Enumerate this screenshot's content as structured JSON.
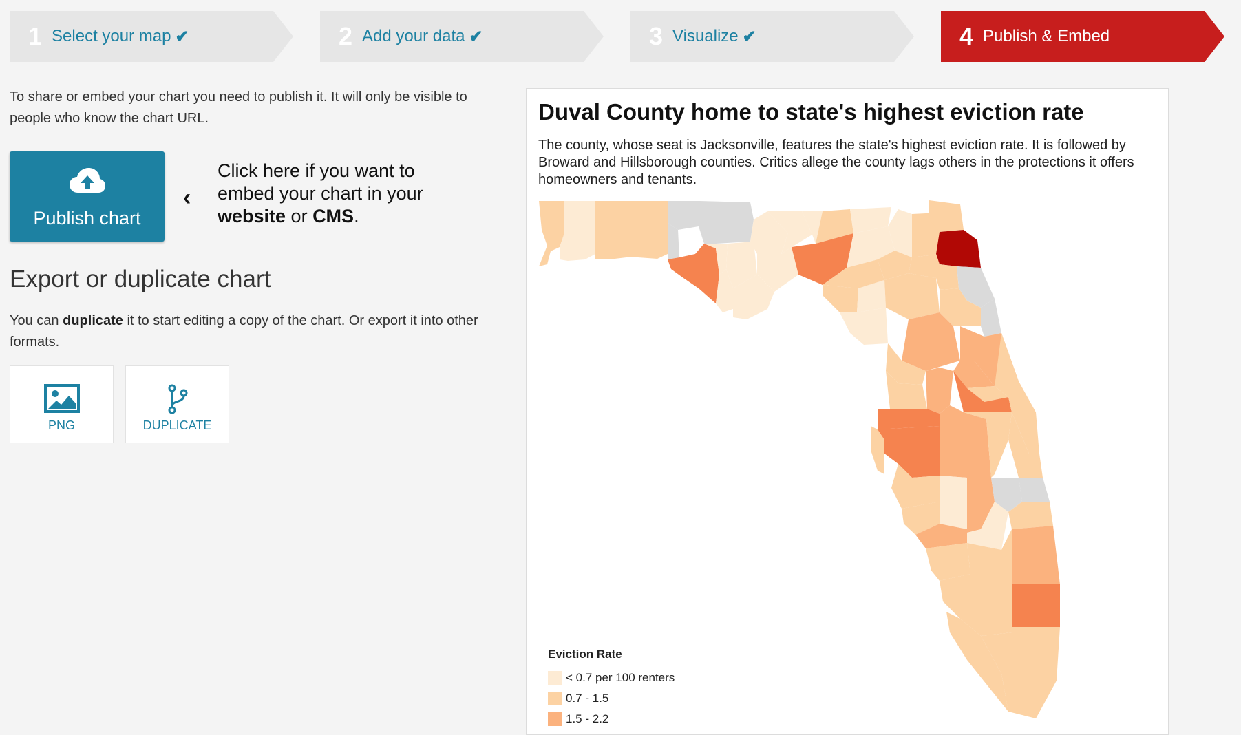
{
  "steps": [
    {
      "num": "1",
      "label": "Select your map",
      "done": true
    },
    {
      "num": "2",
      "label": "Add your data",
      "done": true
    },
    {
      "num": "3",
      "label": "Visualize",
      "done": true
    },
    {
      "num": "4",
      "label": "Publish & Embed",
      "done": false
    }
  ],
  "intro_text": "To share or embed your chart you need to publish it. It will only be visible to people who know the chart URL.",
  "publish_button": {
    "label": "Publish chart",
    "icon": "cloud-upload-icon"
  },
  "hint": {
    "part1": "Click here if you want to embed your chart in your ",
    "website": "website",
    "or": " or ",
    "cms": "CMS",
    "end": "."
  },
  "export": {
    "heading": "Export or duplicate chart",
    "desc_before": "You can ",
    "desc_bold": "duplicate",
    "desc_after": " it to start editing a copy of the chart. Or export it into other formats.",
    "options": [
      {
        "label": "PNG",
        "icon": "image-icon"
      },
      {
        "label": "DUPLICATE",
        "icon": "fork-icon"
      }
    ]
  },
  "chart": {
    "title": "Duval County home to state's highest eviction rate",
    "description": "The county, whose seat is Jacksonville, features the state's highest eviction rate. It is followed by Broward and Hillsborough counties. Critics allege the county lags others in the protections it offers homeowners and tenants.",
    "legend_title": "Eviction Rate",
    "legend": [
      {
        "label": "< 0.7 per 100 renters",
        "color": "#fdebd4"
      },
      {
        "label": "0.7 - 1.5",
        "color": "#fcd2a3"
      },
      {
        "label": "1.5 - 2.2",
        "color": "#fbb27e"
      }
    ]
  },
  "colors": {
    "accent": "#1d81a2",
    "active_step": "#c71e1d",
    "no_data": "#dadada",
    "c1": "#fdebd4",
    "c2": "#fcd2a3",
    "c3": "#fbb27e",
    "c4": "#f5834f",
    "c5": "#b10805"
  }
}
